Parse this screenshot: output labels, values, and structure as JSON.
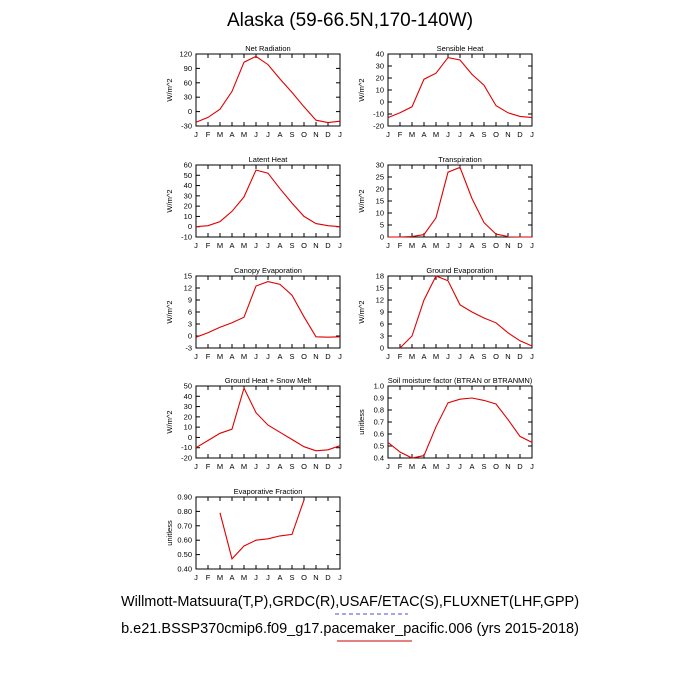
{
  "figure": {
    "title": "Alaska (59-66.5N,170-140W)",
    "caption_line1": "Willmott-Matsuura(T,P),GRDC(R),USAF/ETAC(S),FLUXNET(LHF,GPP)",
    "caption_line2": "b.e21.BSSP370cmip6.f09_g17.pacemaker_pacific.006 (yrs 2015-2018)",
    "line_color": "#e00000"
  },
  "chart_data": [
    {
      "type": "line",
      "title": "Net Radiation",
      "ylabel": "W/m^2",
      "xlabel": "",
      "categories": [
        "J",
        "F",
        "M",
        "A",
        "M",
        "J",
        "J",
        "A",
        "S",
        "O",
        "N",
        "D",
        "J"
      ],
      "ylim": [
        -30,
        120
      ],
      "yticks": [
        -30,
        0,
        30,
        60,
        90,
        120
      ],
      "yticklabels": [
        "-30",
        "0",
        "30",
        "60",
        "90",
        "120"
      ],
      "values": [
        -22,
        -12,
        5,
        42,
        103,
        115,
        98,
        68,
        40,
        10,
        -18,
        -23,
        -20
      ]
    },
    {
      "type": "line",
      "title": "Sensible Heat",
      "ylabel": "W/m^2",
      "xlabel": "",
      "categories": [
        "J",
        "F",
        "M",
        "A",
        "M",
        "J",
        "J",
        "A",
        "S",
        "O",
        "N",
        "D",
        "J"
      ],
      "ylim": [
        -20,
        40
      ],
      "yticks": [
        -20,
        -10,
        0,
        10,
        20,
        30,
        40
      ],
      "yticklabels": [
        "-20",
        "-10",
        "0",
        "10",
        "20",
        "30",
        "40"
      ],
      "values": [
        -13,
        -9,
        -4,
        19,
        24,
        37,
        35,
        23,
        14,
        -3,
        -9,
        -12,
        -13
      ]
    },
    {
      "type": "line",
      "title": "Latent Heat",
      "ylabel": "W/m^2",
      "xlabel": "",
      "categories": [
        "J",
        "F",
        "M",
        "A",
        "M",
        "J",
        "J",
        "A",
        "S",
        "O",
        "N",
        "D",
        "J"
      ],
      "ylim": [
        -10,
        60
      ],
      "yticks": [
        -10,
        0,
        10,
        20,
        30,
        40,
        50,
        60
      ],
      "yticklabels": [
        "-10",
        "0",
        "10",
        "20",
        "30",
        "40",
        "50",
        "60"
      ],
      "values": [
        0,
        1,
        5,
        15,
        29,
        55,
        52,
        37,
        23,
        10,
        3,
        1,
        0
      ]
    },
    {
      "type": "line",
      "title": "Transpiration",
      "ylabel": "W/m^2",
      "xlabel": "",
      "categories": [
        "J",
        "F",
        "M",
        "A",
        "M",
        "J",
        "J",
        "A",
        "S",
        "O",
        "N",
        "D",
        "J"
      ],
      "ylim": [
        0,
        30
      ],
      "yticks": [
        0,
        5,
        10,
        15,
        20,
        25,
        30
      ],
      "yticklabels": [
        "0",
        "5",
        "10",
        "15",
        "20",
        "25",
        "30"
      ],
      "values": [
        0,
        0,
        0.2,
        1,
        8,
        27,
        29,
        16,
        6,
        1.2,
        0.2,
        0,
        0
      ]
    },
    {
      "type": "line",
      "title": "Canopy Evaporation",
      "ylabel": "W/m^2",
      "xlabel": "",
      "categories": [
        "J",
        "F",
        "M",
        "A",
        "M",
        "J",
        "J",
        "A",
        "S",
        "O",
        "N",
        "D",
        "J"
      ],
      "ylim": [
        -3,
        15
      ],
      "yticks": [
        -3,
        0,
        3,
        6,
        9,
        12,
        15
      ],
      "yticklabels": [
        "-3",
        "0",
        "3",
        "6",
        "9",
        "12",
        "15"
      ],
      "values": [
        -0.3,
        0.8,
        2.2,
        3.3,
        4.7,
        12.5,
        13.6,
        12.9,
        10.2,
        4.8,
        -0.2,
        -0.3,
        -0.2
      ]
    },
    {
      "type": "line",
      "title": "Ground Evaporation",
      "ylabel": "W/m^2",
      "xlabel": "",
      "categories": [
        "J",
        "F",
        "M",
        "A",
        "M",
        "J",
        "J",
        "A",
        "S",
        "O",
        "N",
        "D",
        "J"
      ],
      "ylim": [
        0,
        18
      ],
      "yticks": [
        0,
        3,
        6,
        9,
        12,
        15,
        18
      ],
      "yticklabels": [
        "0",
        "3",
        "6",
        "9",
        "12",
        "15",
        "18"
      ],
      "values": [
        null,
        0,
        3,
        12,
        18,
        16.8,
        10.8,
        9,
        7.5,
        6.3,
        3.8,
        1.8,
        0.5
      ]
    },
    {
      "type": "line",
      "title": "Ground Heat + Snow Melt",
      "ylabel": "W/m^2",
      "xlabel": "",
      "categories": [
        "J",
        "F",
        "M",
        "A",
        "M",
        "J",
        "J",
        "A",
        "S",
        "O",
        "N",
        "D",
        "J"
      ],
      "ylim": [
        -20,
        50
      ],
      "yticks": [
        -20,
        -10,
        0,
        10,
        20,
        30,
        40,
        50
      ],
      "yticklabels": [
        "-20",
        "-10",
        "0",
        "10",
        "20",
        "30",
        "40",
        "50"
      ],
      "values": [
        -10,
        -3,
        4,
        8,
        48,
        24,
        12,
        5,
        -2,
        -9,
        -13,
        -12,
        -8
      ]
    },
    {
      "type": "line",
      "title": "Soil moisture factor (BTRAN or BTRANMN)",
      "ylabel": "unitless",
      "xlabel": "",
      "categories": [
        "J",
        "F",
        "M",
        "A",
        "M",
        "J",
        "J",
        "A",
        "S",
        "O",
        "N",
        "D",
        "J"
      ],
      "ylim": [
        0.4,
        1.0
      ],
      "yticks": [
        0.4,
        0.5,
        0.6,
        0.7,
        0.8,
        0.9,
        1.0
      ],
      "yticklabels": [
        "0.4",
        "0.5",
        "0.6",
        "0.7",
        "0.8",
        "0.9",
        "1.0"
      ],
      "values": [
        0.53,
        0.45,
        0.4,
        0.42,
        0.66,
        0.86,
        0.89,
        0.9,
        0.88,
        0.85,
        0.72,
        0.58,
        0.53
      ]
    },
    {
      "type": "line",
      "title": "Evaporative Fraction",
      "ylabel": "unitless",
      "xlabel": "",
      "categories": [
        "J",
        "F",
        "M",
        "A",
        "M",
        "J",
        "J",
        "A",
        "S",
        "O",
        "N",
        "D",
        "J"
      ],
      "ylim": [
        0.4,
        0.9
      ],
      "yticks": [
        0.4,
        0.5,
        0.6,
        0.7,
        0.8,
        0.9
      ],
      "yticklabels": [
        "0.40",
        "0.50",
        "0.60",
        "0.70",
        "0.80",
        "0.90"
      ],
      "values": [
        null,
        null,
        0.79,
        0.47,
        0.56,
        0.6,
        0.61,
        0.63,
        0.64,
        0.88,
        null,
        null,
        null
      ]
    }
  ]
}
